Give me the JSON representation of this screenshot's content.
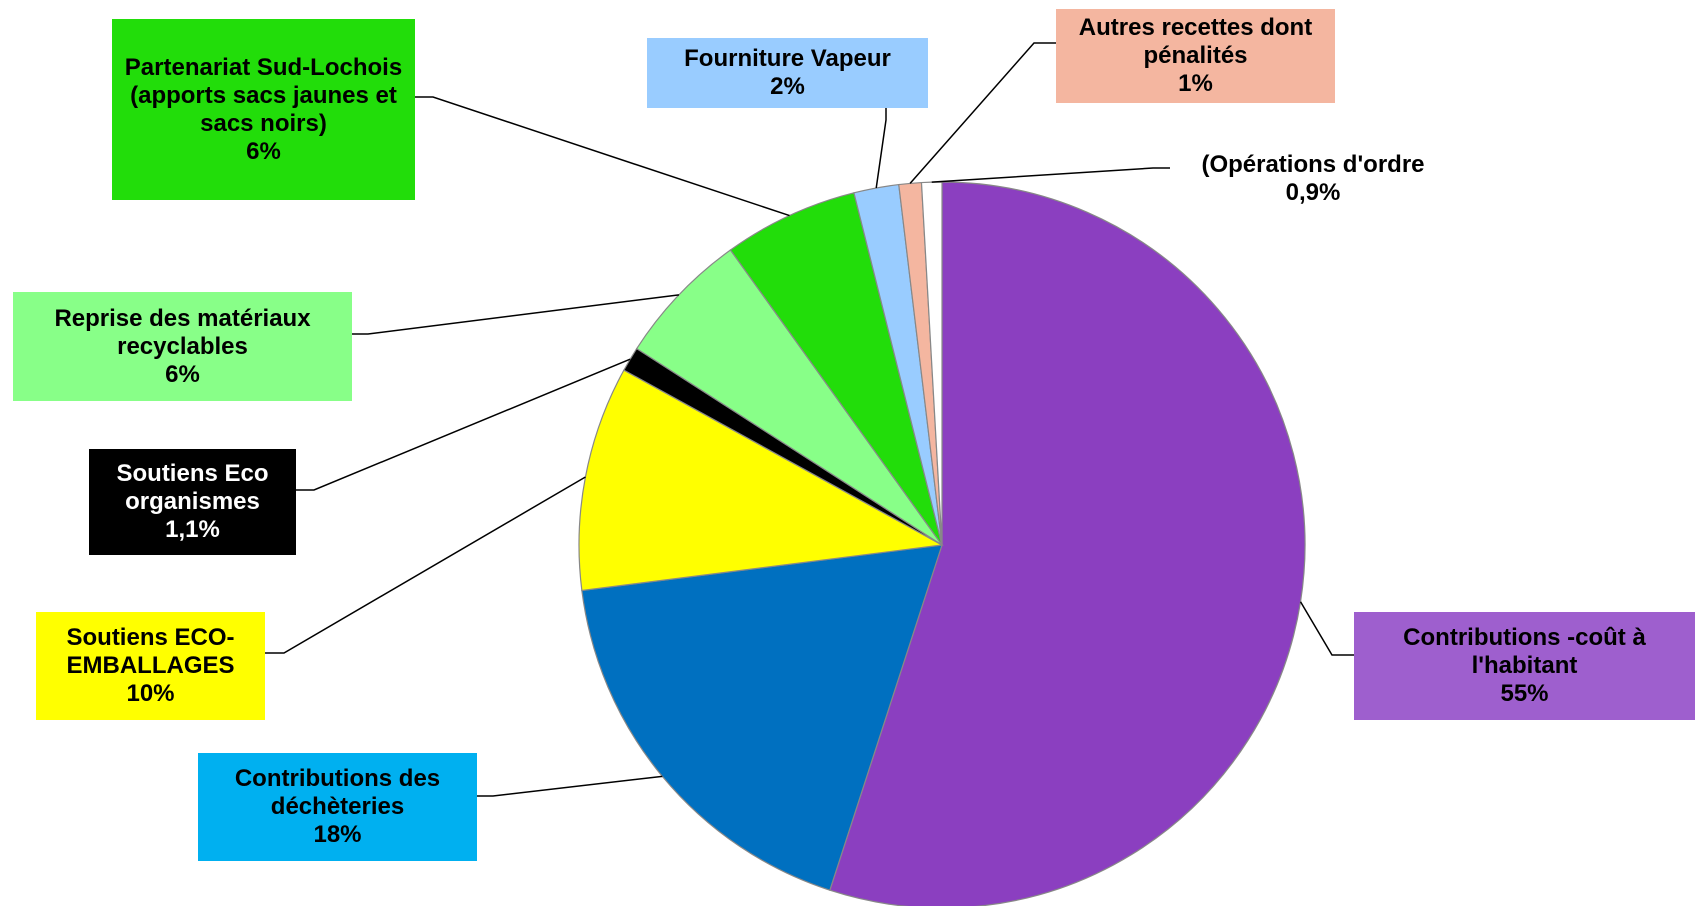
{
  "chart_data": {
    "type": "pie",
    "categories": [
      "Contributions -coût à l'habitant",
      "Contributions des déchèteries",
      "Soutiens ECO-EMBALLAGES",
      "Soutiens Eco organismes",
      "Reprise des matériaux recyclables",
      "Partenariat Sud-Lochois (apports sacs jaunes et sacs noirs)",
      "Fourniture Vapeur",
      "Autres recettes dont pénalités",
      "(Opérations d'ordre"
    ],
    "values": [
      55,
      18,
      10,
      1.1,
      6,
      6,
      2,
      1,
      0.9
    ],
    "value_labels": [
      "55%",
      "18%",
      "10%",
      "1,1%",
      "6%",
      "6%",
      "2%",
      "1%",
      "0,9%"
    ],
    "colors": [
      "#8b3fc0",
      "#0070c0",
      "#ffff00",
      "#000000",
      "#88ff88",
      "#22dd0a",
      "#99ccff",
      "#f4b6a0",
      "#ffffff"
    ],
    "label_colors": [
      "#9e5fce",
      "#00b0f0",
      "#ffff00",
      "#000000",
      "#88ff88",
      "#22dd0a",
      "#99ccff",
      "#f4b6a0",
      null
    ]
  }
}
